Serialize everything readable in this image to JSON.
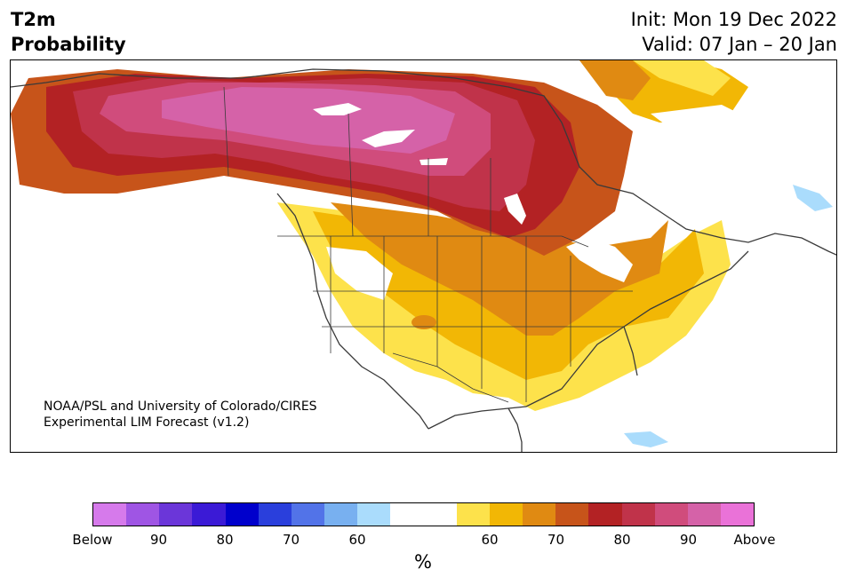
{
  "title": {
    "left_line1": "T2m",
    "left_line2": "Probability",
    "right_line1": "Init: Mon 19 Dec 2022",
    "right_line2": "Valid: 07 Jan – 20 Jan"
  },
  "credit": {
    "line1": "NOAA/PSL and University of Colorado/CIRES",
    "line2": "Experimental LIM Forecast (v1.2)"
  },
  "colorbar": {
    "colors": [
      "#d67aeb",
      "#9f55e4",
      "#6b36d9",
      "#3b1ad6",
      "#0000cc",
      "#2a3fdc",
      "#5273e8",
      "#78b0f0",
      "#aadcfc",
      "#ffffff",
      "#ffffff",
      "#fde24b",
      "#f2b705",
      "#e08a12",
      "#c7541a",
      "#b32224",
      "#c0334a",
      "#d04c7c",
      "#d562a8",
      "#ea72d8"
    ],
    "tick_labels": [
      "Below",
      "90",
      "80",
      "70",
      "60",
      "60",
      "70",
      "80",
      "90",
      "Above"
    ],
    "units": "%"
  },
  "map": {
    "land_color": "#ffffff",
    "outline_color": "#3a3a3a",
    "legend_meaning": "Probability of above/below normal 2-meter temperature"
  }
}
